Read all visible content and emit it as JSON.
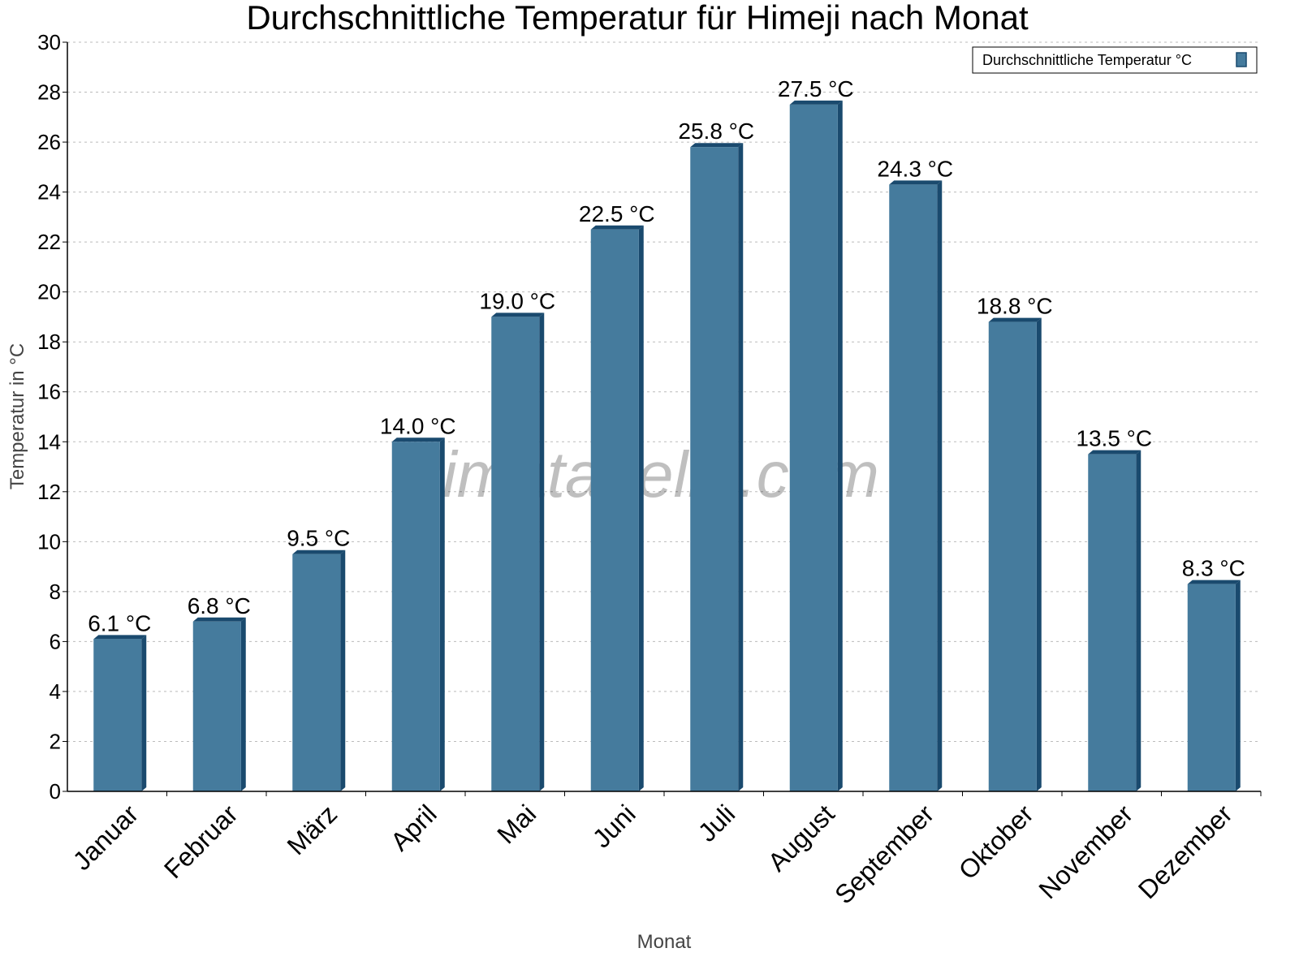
{
  "chart_data": {
    "type": "bar",
    "title": "Durchschnittliche Temperatur für Himeji nach Monat",
    "xlabel": "Monat",
    "ylabel": "Temperatur in °C",
    "ylim": [
      0,
      30
    ],
    "yticks": [
      0,
      2,
      4,
      6,
      8,
      10,
      12,
      14,
      16,
      18,
      20,
      22,
      24,
      26,
      28,
      30
    ],
    "grid": true,
    "legend_placement": "top-right",
    "categories": [
      "Januar",
      "Februar",
      "März",
      "April",
      "Mai",
      "Juni",
      "Juli",
      "August",
      "September",
      "Oktober",
      "November",
      "Dezember"
    ],
    "series": [
      {
        "name": "Durchschnittliche Temperatur °C",
        "values": [
          6.1,
          6.8,
          9.5,
          14.0,
          19.0,
          22.5,
          25.8,
          27.5,
          24.3,
          18.8,
          13.5,
          8.3
        ],
        "labels": [
          "6.1 °C",
          "6.8 °C",
          "9.5 °C",
          "14.0 °C",
          "19.0 °C",
          "22.5 °C",
          "25.8 °C",
          "27.5 °C",
          "24.3 °C",
          "18.8 °C",
          "13.5 °C",
          "8.3 °C"
        ]
      }
    ],
    "colors": {
      "bar_front": "#457b9d",
      "bar_side": "#1a4a6e"
    },
    "watermark": "klimatabelle.com"
  }
}
